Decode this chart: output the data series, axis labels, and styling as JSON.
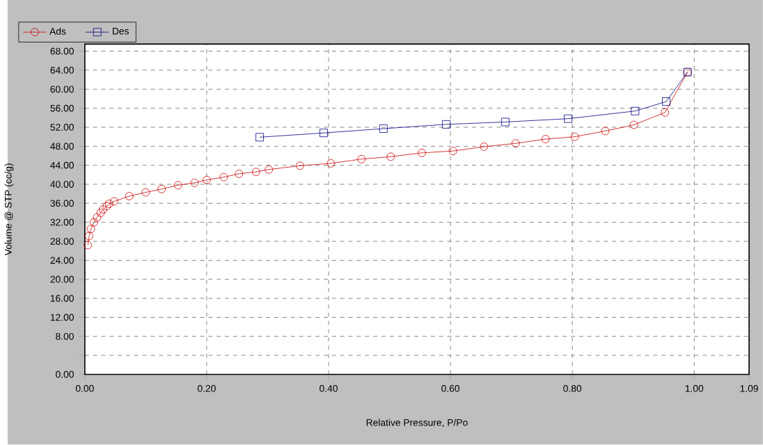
{
  "chart_data": {
    "type": "line",
    "xlabel": "Relative Pressure, P/Po",
    "ylabel": "Volume @ STP (cc/g)",
    "xlim": [
      0,
      1.09
    ],
    "ylim": [
      0,
      69.5
    ],
    "xticks": [
      {
        "value": 0,
        "label": "0.00"
      },
      {
        "value": 0.2,
        "label": "0.20"
      },
      {
        "value": 0.4,
        "label": "0.40"
      },
      {
        "value": 0.6,
        "label": "0.60"
      },
      {
        "value": 0.8,
        "label": "0.80"
      },
      {
        "value": 1.0,
        "label": "1.00"
      },
      1.09
    ],
    "yticks": [
      {
        "value": 0,
        "label": "0.00"
      },
      {
        "value": 4,
        "label": null
      },
      {
        "value": 8,
        "label": "8.00"
      },
      {
        "value": 12,
        "label": "12.00"
      },
      {
        "value": 16,
        "label": "16.00"
      },
      {
        "value": 20,
        "label": "20.00"
      },
      {
        "value": 24,
        "label": "24.00"
      },
      {
        "value": 28,
        "label": "28.00"
      },
      {
        "value": 32,
        "label": "32.00"
      },
      {
        "value": 36,
        "label": "36.00"
      },
      {
        "value": 40,
        "label": "40.00"
      },
      {
        "value": 44,
        "label": "44.00"
      },
      {
        "value": 48,
        "label": "48.00"
      },
      {
        "value": 52,
        "label": "52.00"
      },
      {
        "value": 56,
        "label": "56.00"
      },
      {
        "value": 60,
        "label": "60.00"
      },
      {
        "value": 64,
        "label": "64.00"
      },
      {
        "value": 68,
        "label": "68.00"
      }
    ],
    "grid": true,
    "legend": "top left",
    "line_style": "solid",
    "series": [
      {
        "name": "Ads",
        "color": "#cc0000",
        "marker": "circle",
        "x": [
          0.005,
          0.007,
          0.01,
          0.015,
          0.02,
          0.026,
          0.03,
          0.036,
          0.04,
          0.048,
          0.073,
          0.1,
          0.126,
          0.153,
          0.18,
          0.2,
          0.228,
          0.253,
          0.281,
          0.302,
          0.353,
          0.404,
          0.454,
          0.502,
          0.553,
          0.604,
          0.655,
          0.707,
          0.756,
          0.804,
          0.854,
          0.901,
          0.952,
          0.989
        ],
        "values": [
          27.2,
          29.1,
          30.6,
          32.0,
          33.0,
          34.0,
          34.7,
          35.4,
          35.9,
          36.4,
          37.5,
          38.3,
          39.0,
          39.8,
          40.3,
          40.9,
          41.5,
          42.2,
          42.6,
          43.1,
          43.9,
          44.4,
          45.3,
          45.8,
          46.6,
          47.0,
          47.9,
          48.6,
          49.5,
          50.0,
          51.2,
          52.5,
          55.1,
          63.6
        ]
      },
      {
        "name": "Des",
        "color": "#000080",
        "marker": "square",
        "x": [
          0.287,
          0.392,
          0.49,
          0.593,
          0.69,
          0.793,
          0.903,
          0.954,
          0.989
        ],
        "values": [
          49.9,
          50.8,
          51.7,
          52.6,
          53.1,
          53.8,
          55.4,
          57.4,
          63.6
        ]
      }
    ]
  }
}
